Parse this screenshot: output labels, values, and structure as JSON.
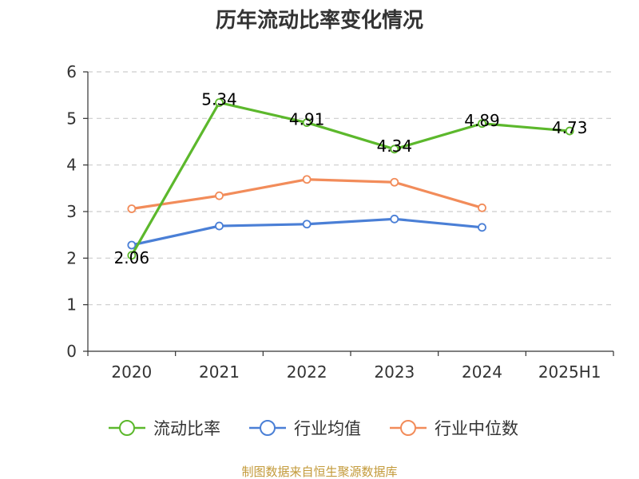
{
  "chart_data": {
    "type": "line",
    "title": "历年流动比率变化情况",
    "categories": [
      "2020",
      "2021",
      "2022",
      "2023",
      "2024",
      "2025H1"
    ],
    "ylim": [
      0,
      6
    ],
    "yticks": [
      "0",
      "1",
      "2",
      "3",
      "4",
      "5",
      "6"
    ],
    "grid": true,
    "legend_position": "bottom",
    "series": [
      {
        "name": "流动比率",
        "color": "#5cb82c",
        "values": [
          2.06,
          5.34,
          4.91,
          4.34,
          4.89,
          4.73
        ],
        "labels": [
          "2.06",
          "5.34",
          "4.91",
          "4.34",
          "4.89",
          "4.73"
        ]
      },
      {
        "name": "行业均值",
        "color": "#4a7fd6",
        "values": [
          2.28,
          2.69,
          2.73,
          2.84,
          2.66,
          null
        ]
      },
      {
        "name": "行业中位数",
        "color": "#f28c5a",
        "values": [
          3.06,
          3.34,
          3.69,
          3.63,
          3.08,
          null
        ]
      }
    ]
  },
  "source_note": "制图数据来自恒生聚源数据库"
}
